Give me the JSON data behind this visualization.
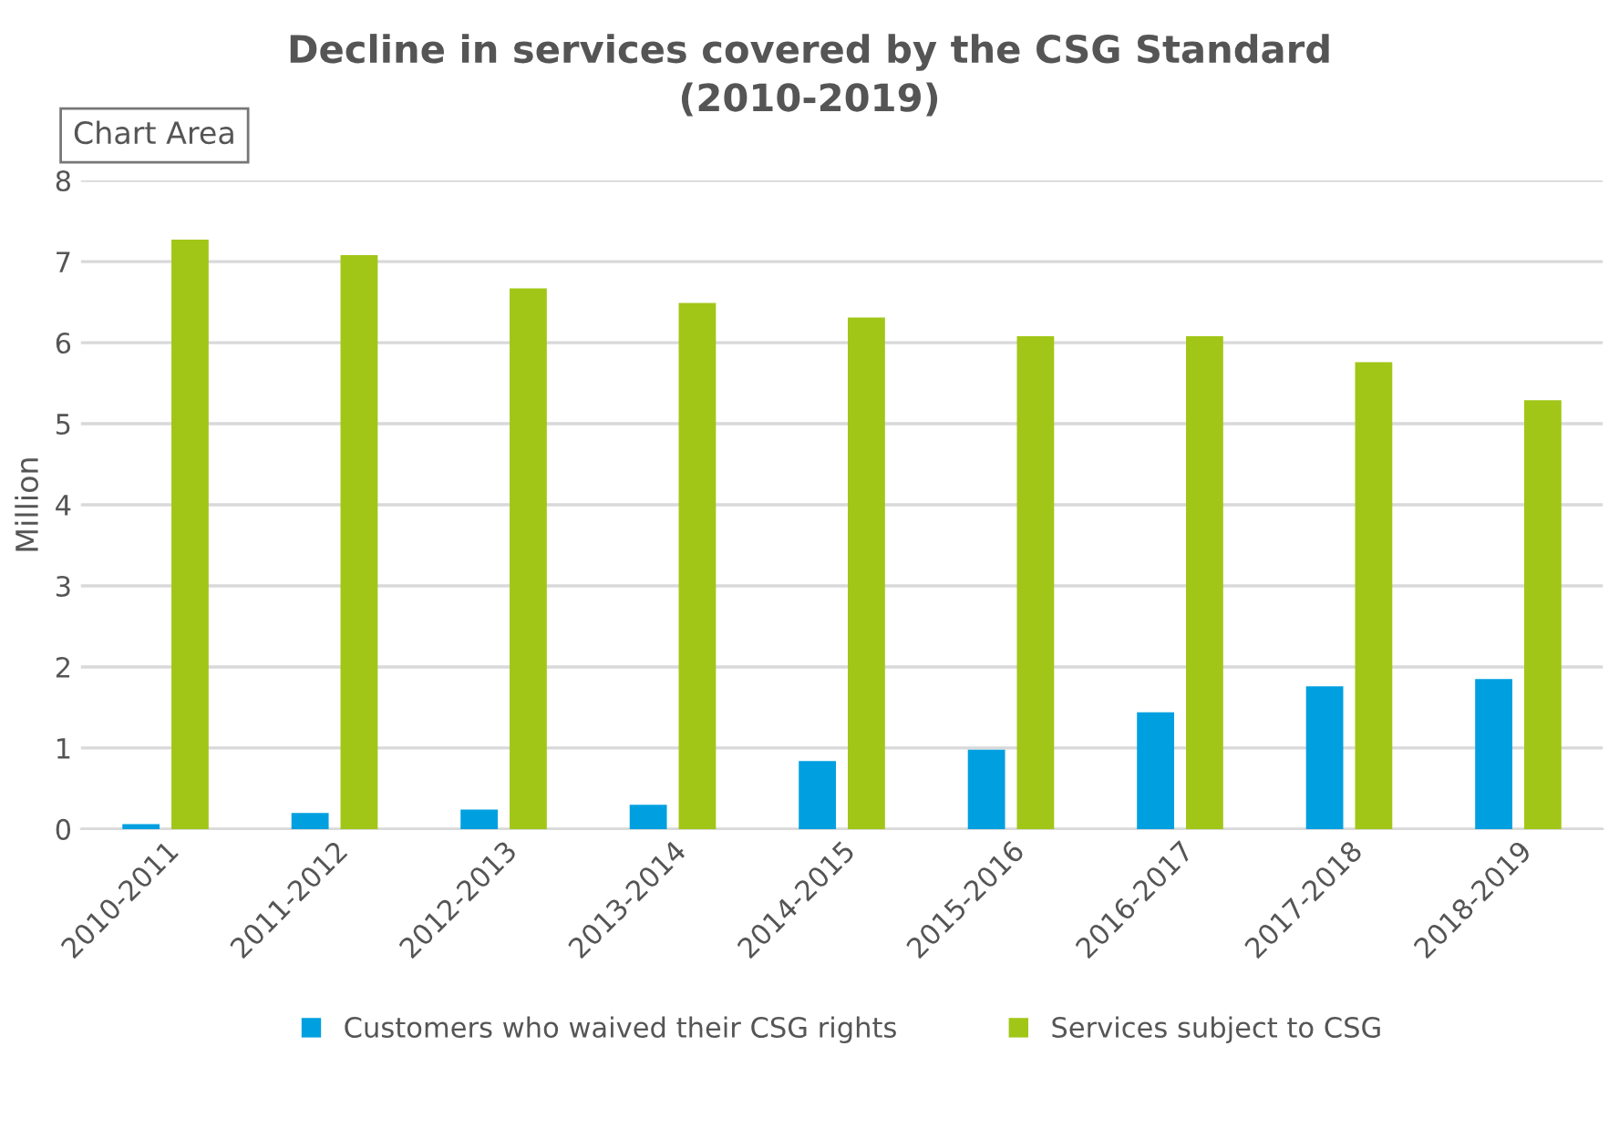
{
  "chart_data": {
    "type": "bar",
    "title": "Decline in services covered by the CSG Standard\n(2010-2019)",
    "ylabel": "Million",
    "annotations": [
      "Chart Area"
    ],
    "categories": [
      "2010-2011",
      "2011-2012",
      "2012-2013",
      "2013-2014",
      "2014-2015",
      "2015-2016",
      "2016-2017",
      "2017-2018",
      "2018-2019"
    ],
    "series": [
      {
        "name": "Customers who waived their CSG rights",
        "color": "#00a0e0",
        "values": [
          0.06,
          0.2,
          0.24,
          0.3,
          0.84,
          0.98,
          1.44,
          1.76,
          1.85
        ]
      },
      {
        "name": "Services subject to CSG",
        "color": "#a2c617",
        "values": [
          7.27,
          7.08,
          6.67,
          6.49,
          6.31,
          6.08,
          6.08,
          5.76,
          5.29
        ]
      }
    ],
    "ylim": [
      0,
      8
    ],
    "yticks": [
      0,
      1,
      2,
      3,
      4,
      5,
      6,
      7,
      8
    ],
    "grid": "y",
    "legend": "bottom"
  }
}
